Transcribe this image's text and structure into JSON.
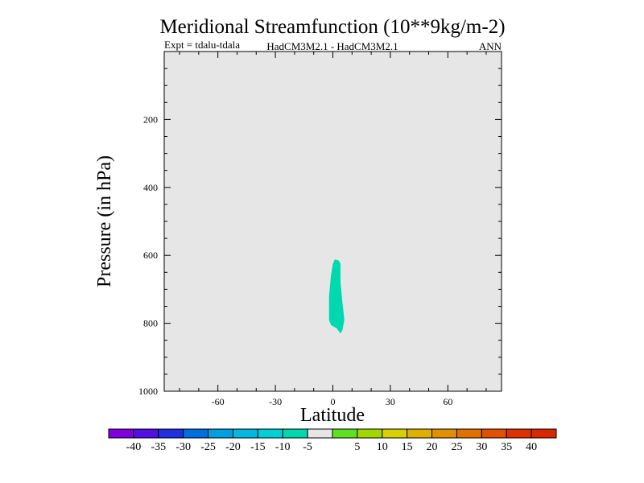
{
  "chart_data": {
    "type": "heatmap",
    "title": "Meridional Streamfunction (10**9kg/m-2)",
    "subtitle_left": "Expt = tdalu-tdala",
    "subtitle_center": "HadCM3M2.1 - HadCM3M2.1",
    "subtitle_right": "ANN",
    "xlabel": "Latitude",
    "ylabel": "Pressure (in hPa)",
    "xlim": [
      -88,
      88
    ],
    "ylim": [
      1000,
      0
    ],
    "xticks": [
      -60,
      -30,
      0,
      30,
      60
    ],
    "xtick_labels": [
      "-60",
      "-30",
      "0",
      "30",
      "60"
    ],
    "yticks": [
      200,
      400,
      600,
      800,
      1000
    ],
    "ytick_labels": [
      "200",
      "400",
      "600",
      "800",
      "1000"
    ],
    "background_color": "#e6e6e6",
    "filled_region": {
      "level_color": "#00d8b0",
      "range": "-10 to -5",
      "points": [
        [
          0,
          625
        ],
        [
          1,
          612
        ],
        [
          3,
          615
        ],
        [
          4,
          625
        ],
        [
          4,
          680
        ],
        [
          5,
          740
        ],
        [
          6,
          790
        ],
        [
          5,
          820
        ],
        [
          4,
          830
        ],
        [
          2,
          815
        ],
        [
          -1,
          805
        ],
        [
          -2,
          790
        ],
        [
          -2,
          720
        ],
        [
          -1,
          660
        ]
      ]
    },
    "colorbar": {
      "colors": [
        "#8000e0",
        "#5010e0",
        "#2030e0",
        "#0070e0",
        "#00a0e0",
        "#00b8e0",
        "#00d0d8",
        "#00d8b0",
        "#e6e6e6",
        "#60e020",
        "#a0d800",
        "#d8d000",
        "#e0b000",
        "#e09000",
        "#e07000",
        "#e05000",
        "#e03000",
        "#d82800"
      ],
      "labels": [
        "-40",
        "-35",
        "-30",
        "-25",
        "-20",
        "-15",
        "-10",
        "-5",
        "5",
        "10",
        "15",
        "20",
        "25",
        "30",
        "35",
        "40"
      ]
    }
  }
}
